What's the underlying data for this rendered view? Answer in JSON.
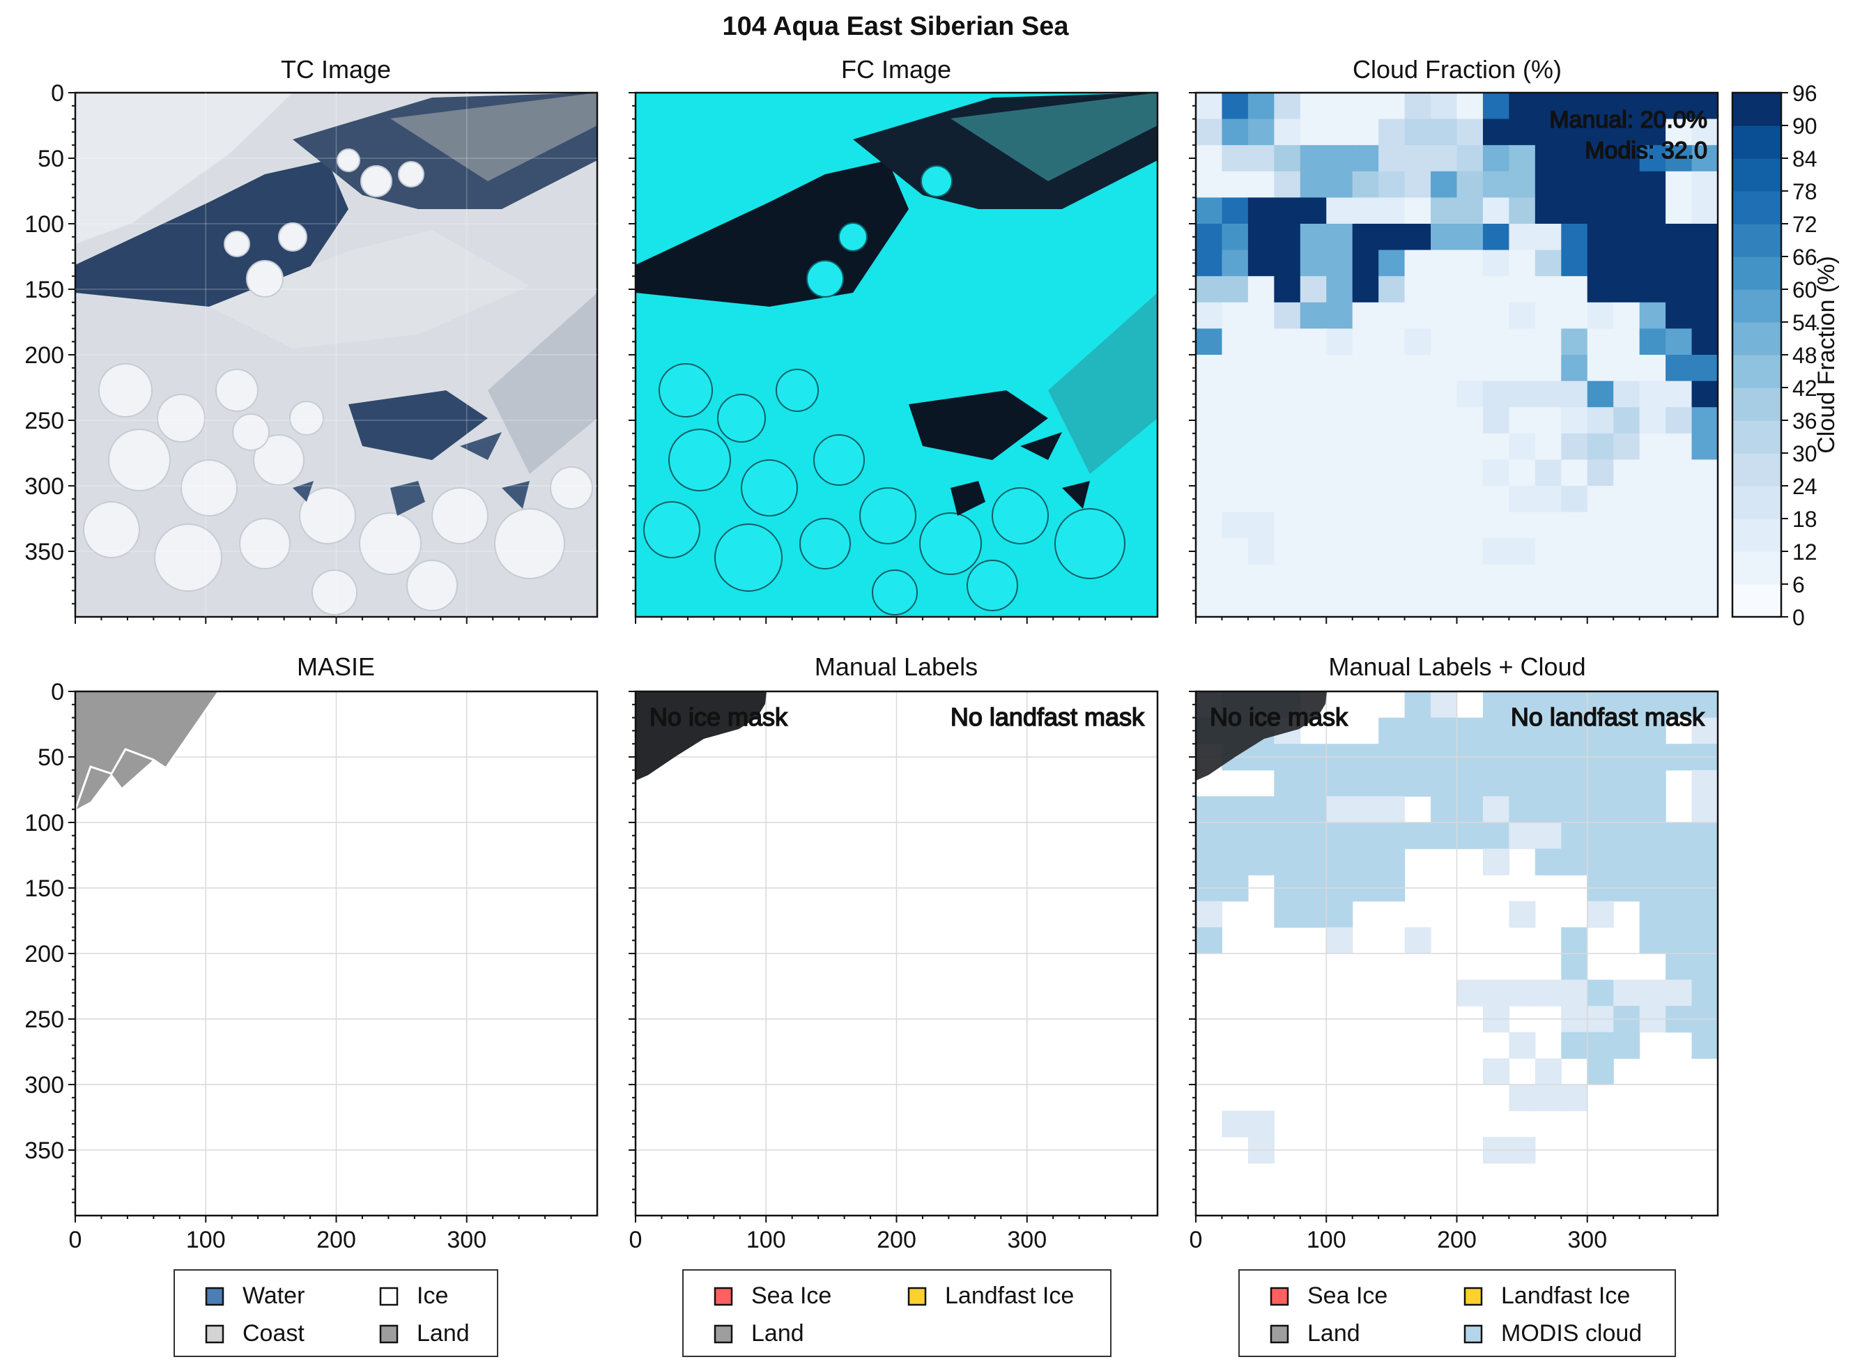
{
  "figure": {
    "title": "104 Aqua East Siberian Sea"
  },
  "panels": {
    "tc": {
      "title": "TC Image"
    },
    "fc": {
      "title": "FC Image"
    },
    "cloud": {
      "title": "Cloud Fraction (%)",
      "annot_manual": "Manual: 20.0%",
      "annot_modis": "Modis: 32.0"
    },
    "masie": {
      "title": "MASIE"
    },
    "manual": {
      "title": "Manual Labels",
      "no_ice": "No ice mask",
      "no_landfast": "No landfast mask"
    },
    "manual_cloud": {
      "title": "Manual Labels + Cloud",
      "no_ice": "No ice mask",
      "no_landfast": "No landfast mask"
    }
  },
  "axes": {
    "y_ticks": [
      "0",
      "50",
      "100",
      "150",
      "200",
      "250",
      "300",
      "350"
    ],
    "x_ticks": [
      "0",
      "100",
      "200",
      "300"
    ]
  },
  "colorbar": {
    "label": "Cloud Fraction (%)",
    "ticks": [
      "0",
      "6",
      "12",
      "18",
      "24",
      "30",
      "36",
      "42",
      "48",
      "54",
      "60",
      "66",
      "72",
      "78",
      "84",
      "90",
      "96"
    ],
    "colors": [
      "#f7fbff",
      "#ebf3fb",
      "#e1edf8",
      "#d6e6f4",
      "#cadef0",
      "#bad6eb",
      "#a7cde4",
      "#8fc2de",
      "#75b3d8",
      "#5ba3d0",
      "#4493c7",
      "#3181bd",
      "#1f6fb4",
      "#1260a6",
      "#0a4f93",
      "#08306b"
    ]
  },
  "legends": {
    "masie": [
      {
        "label": "Water",
        "color": "#4a7eb5"
      },
      {
        "label": "Ice",
        "color": "#ffffff"
      },
      {
        "label": "Coast",
        "color": "#d4d4d4"
      },
      {
        "label": "Land",
        "color": "#9e9e9e"
      }
    ],
    "manual": [
      {
        "label": "Sea Ice",
        "color": "#ff6060"
      },
      {
        "label": "Landfast Ice",
        "color": "#ffd02e"
      },
      {
        "label": "Land",
        "color": "#9e9e9e"
      }
    ],
    "manual_cloud": [
      {
        "label": "Sea Ice",
        "color": "#ff6060"
      },
      {
        "label": "Landfast Ice",
        "color": "#ffd02e"
      },
      {
        "label": "Land",
        "color": "#9e9e9e"
      },
      {
        "label": "MODIS cloud",
        "color": "#b3d6ea"
      }
    ]
  },
  "chart_data": [
    {
      "type": "heatmap",
      "title": "Cloud Fraction (%)",
      "note": "MODIS cloud fraction grid, 20x20 cells over 0-400 px image extent (values in %)",
      "xlim": [
        0,
        400
      ],
      "ylim": [
        400,
        0
      ],
      "colorbar_range": [
        0,
        96
      ],
      "grid": [
        [
          12,
          72,
          54,
          24,
          8,
          8,
          8,
          8,
          24,
          20,
          8,
          72,
          96,
          96,
          96,
          96,
          96,
          96,
          96,
          96
        ],
        [
          24,
          54,
          48,
          12,
          8,
          8,
          8,
          24,
          30,
          30,
          24,
          96,
          96,
          96,
          96,
          96,
          96,
          96,
          8,
          12
        ],
        [
          8,
          24,
          24,
          36,
          48,
          48,
          48,
          24,
          24,
          24,
          30,
          48,
          42,
          96,
          96,
          96,
          96,
          72,
          66,
          54
        ],
        [
          8,
          8,
          8,
          24,
          48,
          48,
          36,
          30,
          24,
          54,
          36,
          42,
          42,
          96,
          96,
          96,
          96,
          96,
          8,
          12
        ],
        [
          60,
          72,
          96,
          96,
          96,
          12,
          12,
          12,
          8,
          36,
          36,
          12,
          36,
          96,
          96,
          96,
          96,
          96,
          8,
          12
        ],
        [
          72,
          60,
          96,
          96,
          48,
          48,
          96,
          96,
          96,
          48,
          48,
          72,
          12,
          12,
          72,
          96,
          96,
          96,
          96,
          96
        ],
        [
          72,
          54,
          96,
          96,
          48,
          48,
          96,
          54,
          8,
          8,
          8,
          12,
          8,
          30,
          72,
          96,
          96,
          96,
          96,
          96
        ],
        [
          36,
          36,
          8,
          96,
          24,
          48,
          96,
          30,
          8,
          8,
          8,
          8,
          8,
          8,
          8,
          96,
          96,
          96,
          96,
          96
        ],
        [
          12,
          8,
          8,
          24,
          48,
          48,
          8,
          8,
          8,
          8,
          8,
          8,
          12,
          8,
          8,
          12,
          8,
          48,
          96,
          96
        ],
        [
          60,
          8,
          8,
          8,
          8,
          12,
          8,
          8,
          12,
          8,
          8,
          8,
          8,
          8,
          42,
          8,
          8,
          60,
          54,
          96
        ],
        [
          8,
          8,
          8,
          8,
          8,
          6,
          6,
          6,
          6,
          6,
          6,
          6,
          6,
          6,
          48,
          8,
          8,
          8,
          66,
          66
        ],
        [
          8,
          8,
          8,
          8,
          8,
          8,
          8,
          8,
          8,
          8,
          12,
          18,
          18,
          18,
          18,
          60,
          18,
          12,
          12,
          96
        ],
        [
          8,
          8,
          8,
          8,
          8,
          8,
          8,
          8,
          8,
          8,
          8,
          18,
          8,
          8,
          12,
          18,
          30,
          12,
          24,
          54
        ],
        [
          8,
          8,
          8,
          8,
          8,
          8,
          8,
          8,
          8,
          8,
          8,
          8,
          12,
          8,
          24,
          30,
          24,
          8,
          8,
          54
        ],
        [
          8,
          8,
          8,
          8,
          8,
          8,
          8,
          8,
          8,
          8,
          8,
          12,
          8,
          18,
          8,
          24,
          8,
          8,
          8,
          8
        ],
        [
          8,
          8,
          8,
          8,
          8,
          8,
          8,
          8,
          8,
          8,
          8,
          8,
          12,
          12,
          18,
          8,
          8,
          8,
          8,
          8
        ],
        [
          8,
          12,
          12,
          8,
          8,
          8,
          8,
          8,
          8,
          8,
          8,
          8,
          8,
          8,
          8,
          8,
          8,
          8,
          8,
          8
        ],
        [
          8,
          8,
          12,
          8,
          8,
          8,
          8,
          8,
          8,
          8,
          8,
          12,
          12,
          8,
          8,
          8,
          8,
          8,
          8,
          8
        ],
        [
          8,
          8,
          8,
          8,
          8,
          8,
          8,
          8,
          8,
          8,
          8,
          8,
          8,
          8,
          8,
          8,
          8,
          8,
          8,
          8
        ],
        [
          8,
          8,
          8,
          8,
          8,
          8,
          8,
          10,
          10,
          8,
          8,
          8,
          8,
          8,
          8,
          8,
          8,
          8,
          8,
          8
        ]
      ]
    }
  ]
}
